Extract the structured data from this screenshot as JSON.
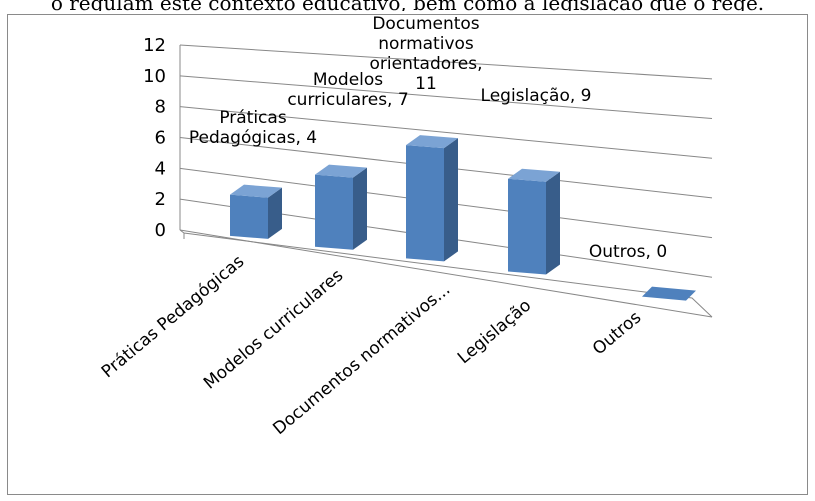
{
  "caption": "o regulam este contexto educativo, bem como a legislação que o rege.",
  "colors": {
    "bar_front": "#4f81bd",
    "bar_side": "#385d8a",
    "bar_top": "#7ba3d4",
    "grid": "#888888"
  },
  "chart_data": {
    "type": "bar",
    "title": "",
    "xlabel": "",
    "ylabel": "",
    "ylim": [
      0,
      12
    ],
    "yticks": [
      "0",
      "2",
      "4",
      "6",
      "8",
      "10",
      "12"
    ],
    "grid": true,
    "legend": "none",
    "categories": [
      "Práticas Pedagógicas",
      "Modelos curriculares",
      "Documentos normativos...",
      "Legislação",
      "Outros"
    ],
    "values": [
      4,
      7,
      11,
      9,
      0
    ],
    "data_labels": [
      [
        "Práticas",
        "Pedagógicas, 4"
      ],
      [
        "Modelos",
        "curriculares, 7"
      ],
      [
        "Documentos",
        "normativos",
        "orientadores,",
        "11"
      ],
      [
        "Legislação, 9"
      ],
      [
        "Outros, 0"
      ]
    ]
  }
}
